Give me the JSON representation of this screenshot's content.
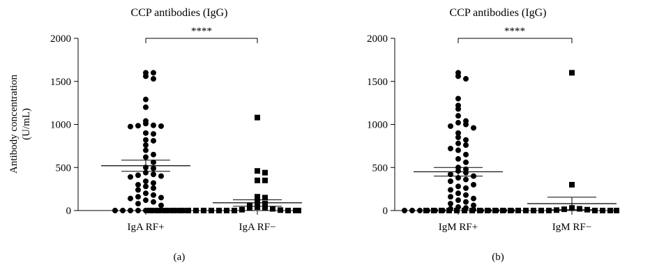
{
  "chart_data": [
    {
      "type": "scatter",
      "panel_label": "(a)",
      "title": "CCP antibodies (IgG)",
      "ylabel_line1": "Antibody concentration",
      "ylabel_line2": "(U/mL)",
      "ylim": [
        0,
        2000
      ],
      "yticks": [
        0,
        500,
        1000,
        1500,
        2000
      ],
      "ytick_labels": [
        "0",
        "500",
        "1000",
        "1500",
        "2000"
      ],
      "categories": [
        "IgA RF+",
        "IgA RF−"
      ],
      "significance": "****",
      "series": [
        {
          "marker": "circle",
          "mean": 520,
          "sem_low": 455,
          "sem_high": 585,
          "values": [
            1600,
            1600,
            1560,
            1530,
            1290,
            1200,
            1040,
            1010,
            990,
            985,
            980,
            975,
            900,
            890,
            820,
            810,
            760,
            700,
            650,
            620,
            560,
            500,
            490,
            440,
            420,
            410,
            400,
            390,
            340,
            320,
            300,
            280,
            260,
            240,
            200,
            180,
            160,
            150,
            140,
            120,
            100,
            80,
            60,
            0,
            0,
            0,
            0,
            0,
            0,
            0,
            0,
            0,
            0
          ]
        },
        {
          "marker": "square",
          "mean": 90,
          "sem_low": 50,
          "sem_high": 125,
          "values": [
            1080,
            460,
            440,
            350,
            350,
            160,
            150,
            100,
            80,
            60,
            40,
            30,
            30,
            20,
            10,
            5,
            0,
            0,
            0,
            0,
            0,
            0,
            0,
            0,
            0,
            0,
            0,
            0,
            0,
            0,
            0,
            0,
            0,
            0,
            0,
            0,
            0,
            0,
            0
          ]
        }
      ]
    },
    {
      "type": "scatter",
      "panel_label": "(b)",
      "title": "CCP antibodies (IgG)",
      "ylim": [
        0,
        2000
      ],
      "yticks": [
        0,
        500,
        1000,
        1500,
        2000
      ],
      "ytick_labels": [
        "0",
        "500",
        "1000",
        "1500",
        "2000"
      ],
      "categories": [
        "IgM RF+",
        "IgM RF−"
      ],
      "significance": "****",
      "series": [
        {
          "marker": "circle",
          "mean": 450,
          "sem_low": 400,
          "sem_high": 500,
          "values": [
            1600,
            1560,
            1530,
            1300,
            1220,
            1180,
            1100,
            1040,
            1020,
            1000,
            980,
            960,
            900,
            850,
            820,
            780,
            760,
            720,
            700,
            650,
            600,
            560,
            500,
            480,
            460,
            440,
            420,
            400,
            380,
            360,
            340,
            300,
            280,
            260,
            240,
            200,
            180,
            160,
            140,
            120,
            100,
            80,
            60,
            40,
            30,
            20,
            10,
            0,
            0,
            0,
            0,
            0,
            0,
            0,
            0,
            0,
            0,
            0
          ]
        },
        {
          "marker": "square",
          "mean": 80,
          "sem_low": 10,
          "sem_high": 155,
          "values": [
            1600,
            300,
            30,
            20,
            15,
            10,
            5,
            0,
            0,
            0,
            0,
            0,
            0,
            0,
            0,
            0,
            0,
            0,
            0,
            0,
            0,
            0,
            0,
            0,
            0,
            0,
            0,
            0,
            0,
            0,
            0,
            0,
            0,
            0,
            0,
            0,
            0,
            0,
            0,
            0,
            0
          ]
        }
      ]
    }
  ]
}
